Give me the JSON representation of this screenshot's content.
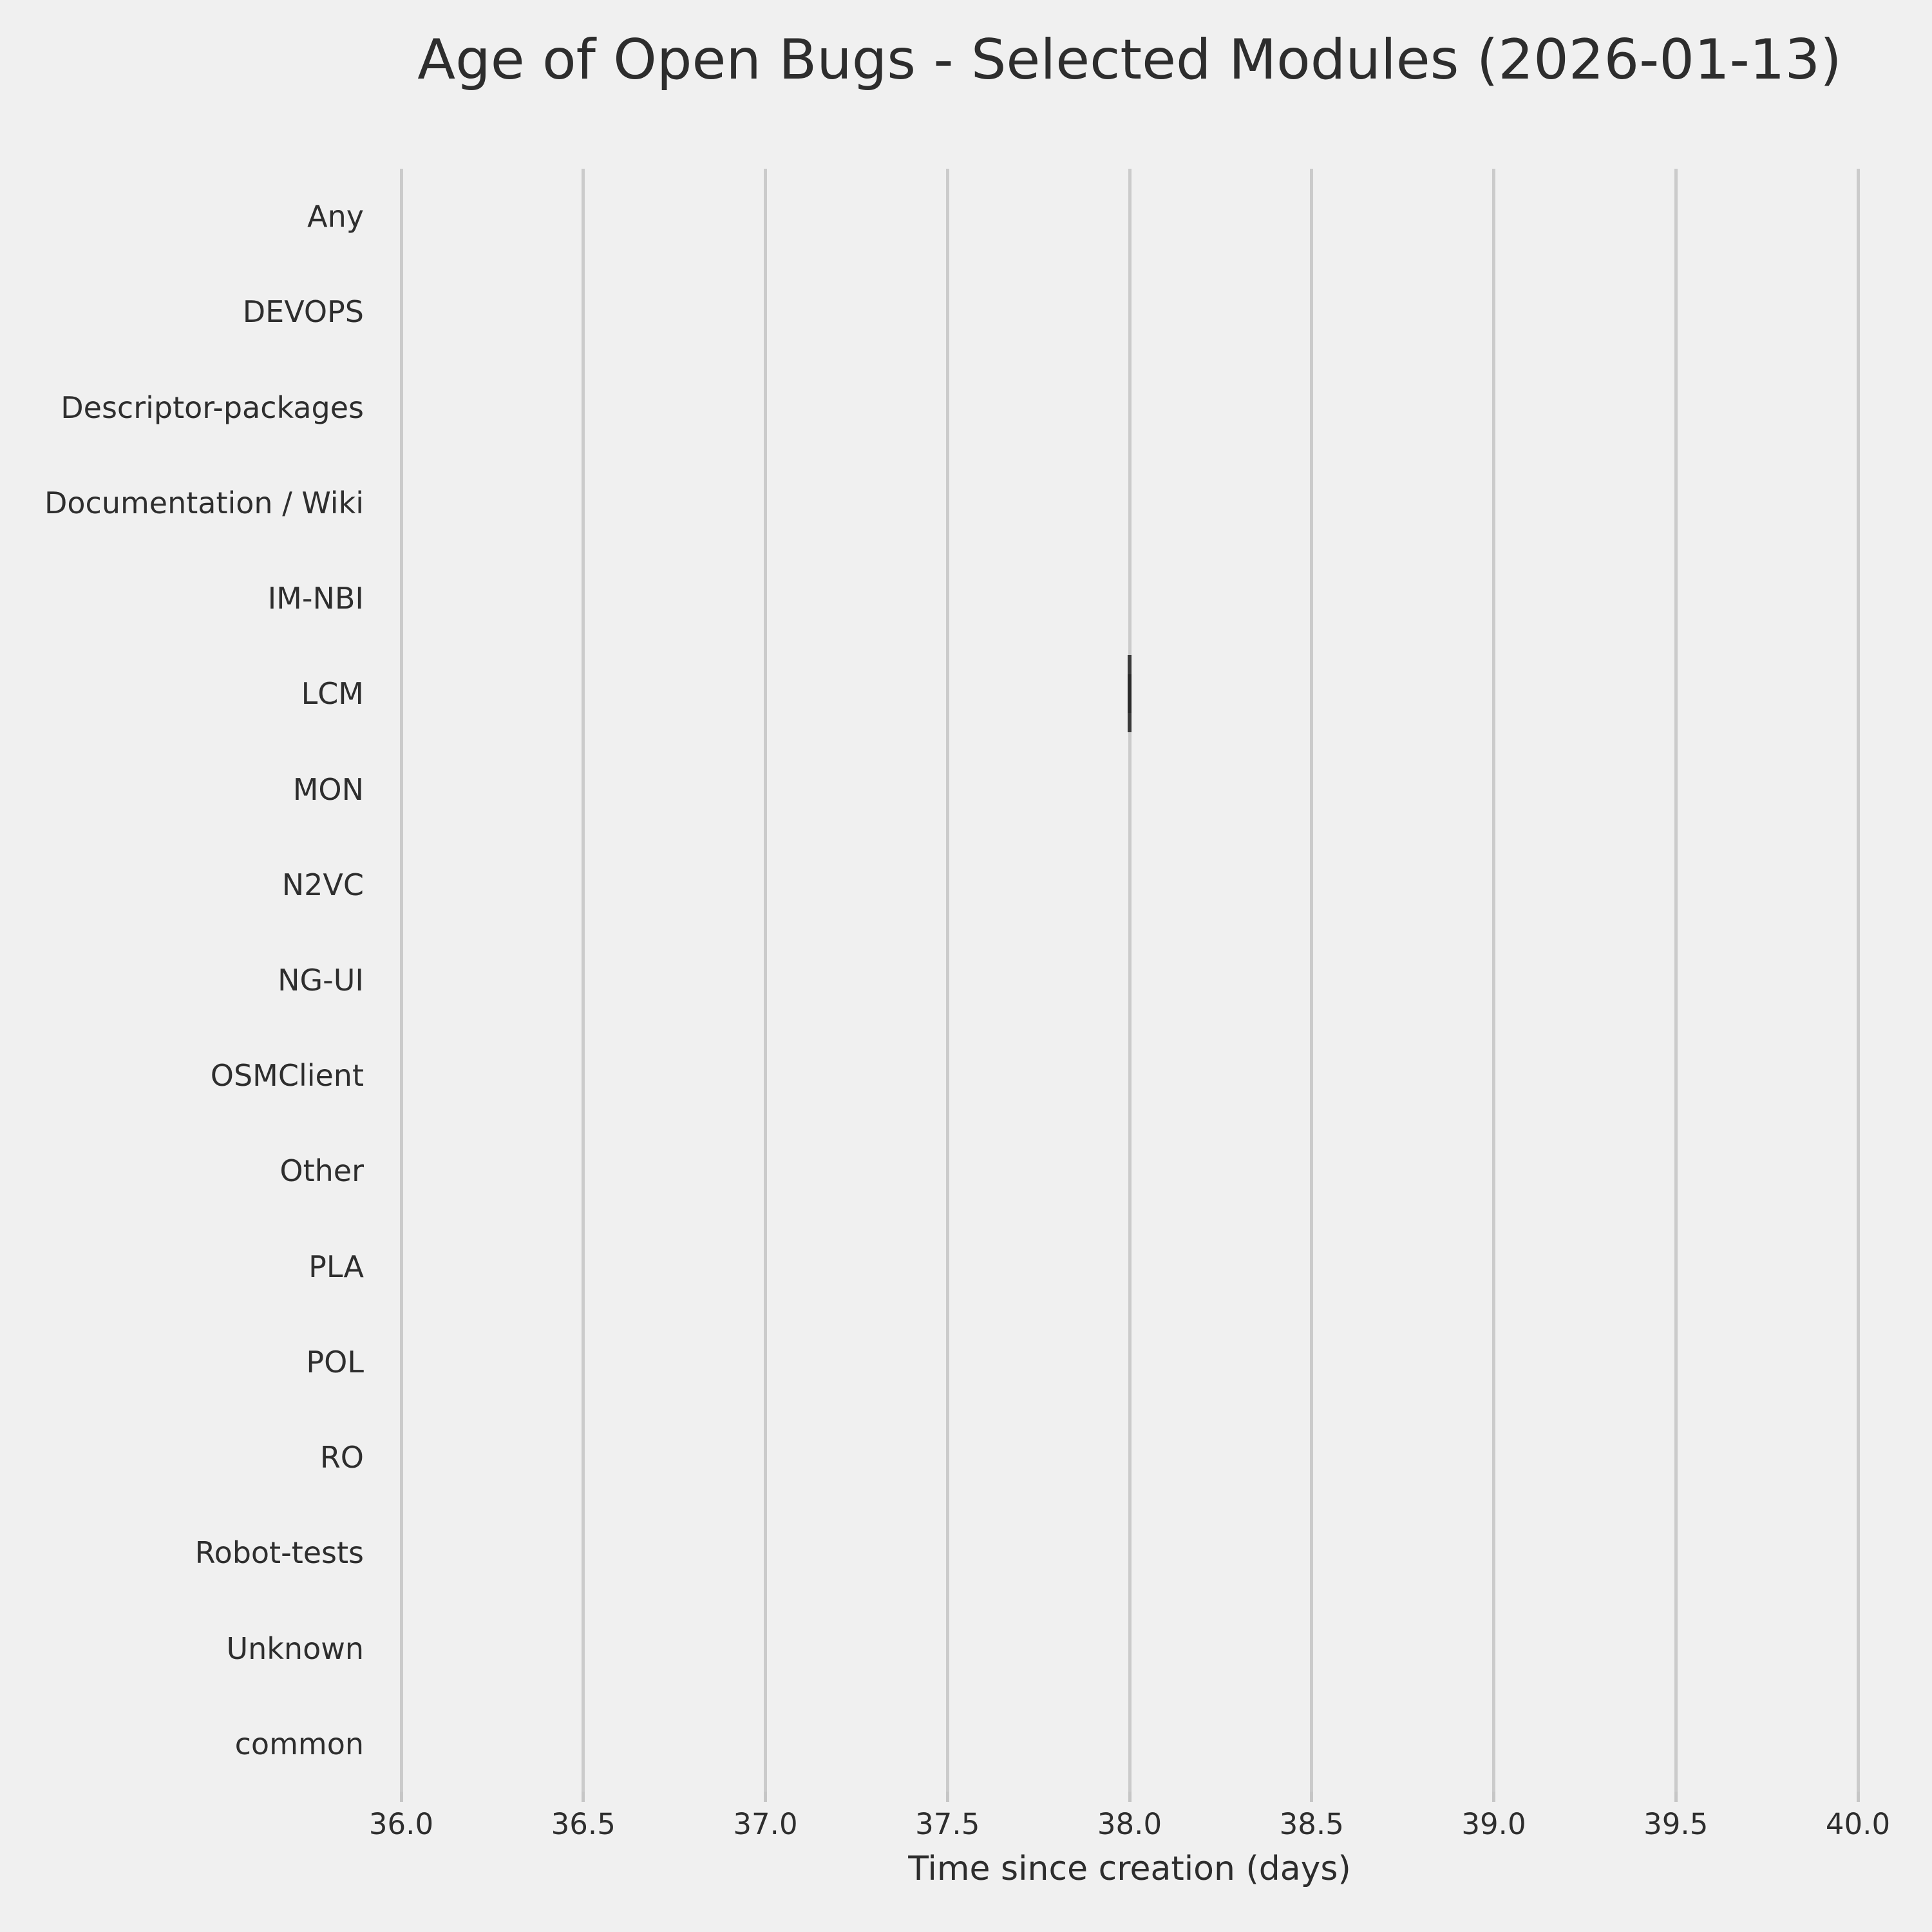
{
  "chart_data": {
    "type": "boxplot",
    "orientation": "horizontal",
    "title": "Age of Open Bugs - Selected Modules (2026-01-13)",
    "xlabel": "Time since creation (days)",
    "ylabel": "",
    "categories": [
      "Any",
      "DEVOPS",
      "Descriptor-packages",
      "Documentation / Wiki",
      "IM-NBI",
      "LCM",
      "MON",
      "N2VC",
      "NG-UI",
      "OSMClient",
      "Other",
      "PLA",
      "POL",
      "RO",
      "Robot-tests",
      "Unknown",
      "common"
    ],
    "xlim": [
      36.0,
      40.0
    ],
    "xticks": [
      36.0,
      36.5,
      37.0,
      37.5,
      38.0,
      38.5,
      39.0,
      39.5,
      40.0
    ],
    "xtick_labels": [
      "36.0",
      "36.5",
      "37.0",
      "37.5",
      "38.0",
      "38.5",
      "39.0",
      "39.5",
      "40.0"
    ],
    "grid": "vertical-only",
    "legend": "none",
    "boxes": [
      {
        "category": "LCM",
        "min": 38.0,
        "q1": 38.0,
        "median": 38.0,
        "q3": 38.0,
        "max": 38.0
      }
    ],
    "categories_without_data": [
      "Any",
      "DEVOPS",
      "Descriptor-packages",
      "Documentation / Wiki",
      "IM-NBI",
      "MON",
      "N2VC",
      "NG-UI",
      "OSMClient",
      "Other",
      "PLA",
      "POL",
      "RO",
      "Robot-tests",
      "Unknown",
      "common"
    ]
  },
  "colors": {
    "background": "#f0f0f0",
    "grid": "#cbcbcb",
    "box_line": "#3a3a3a",
    "text": "#2e2e2e"
  }
}
